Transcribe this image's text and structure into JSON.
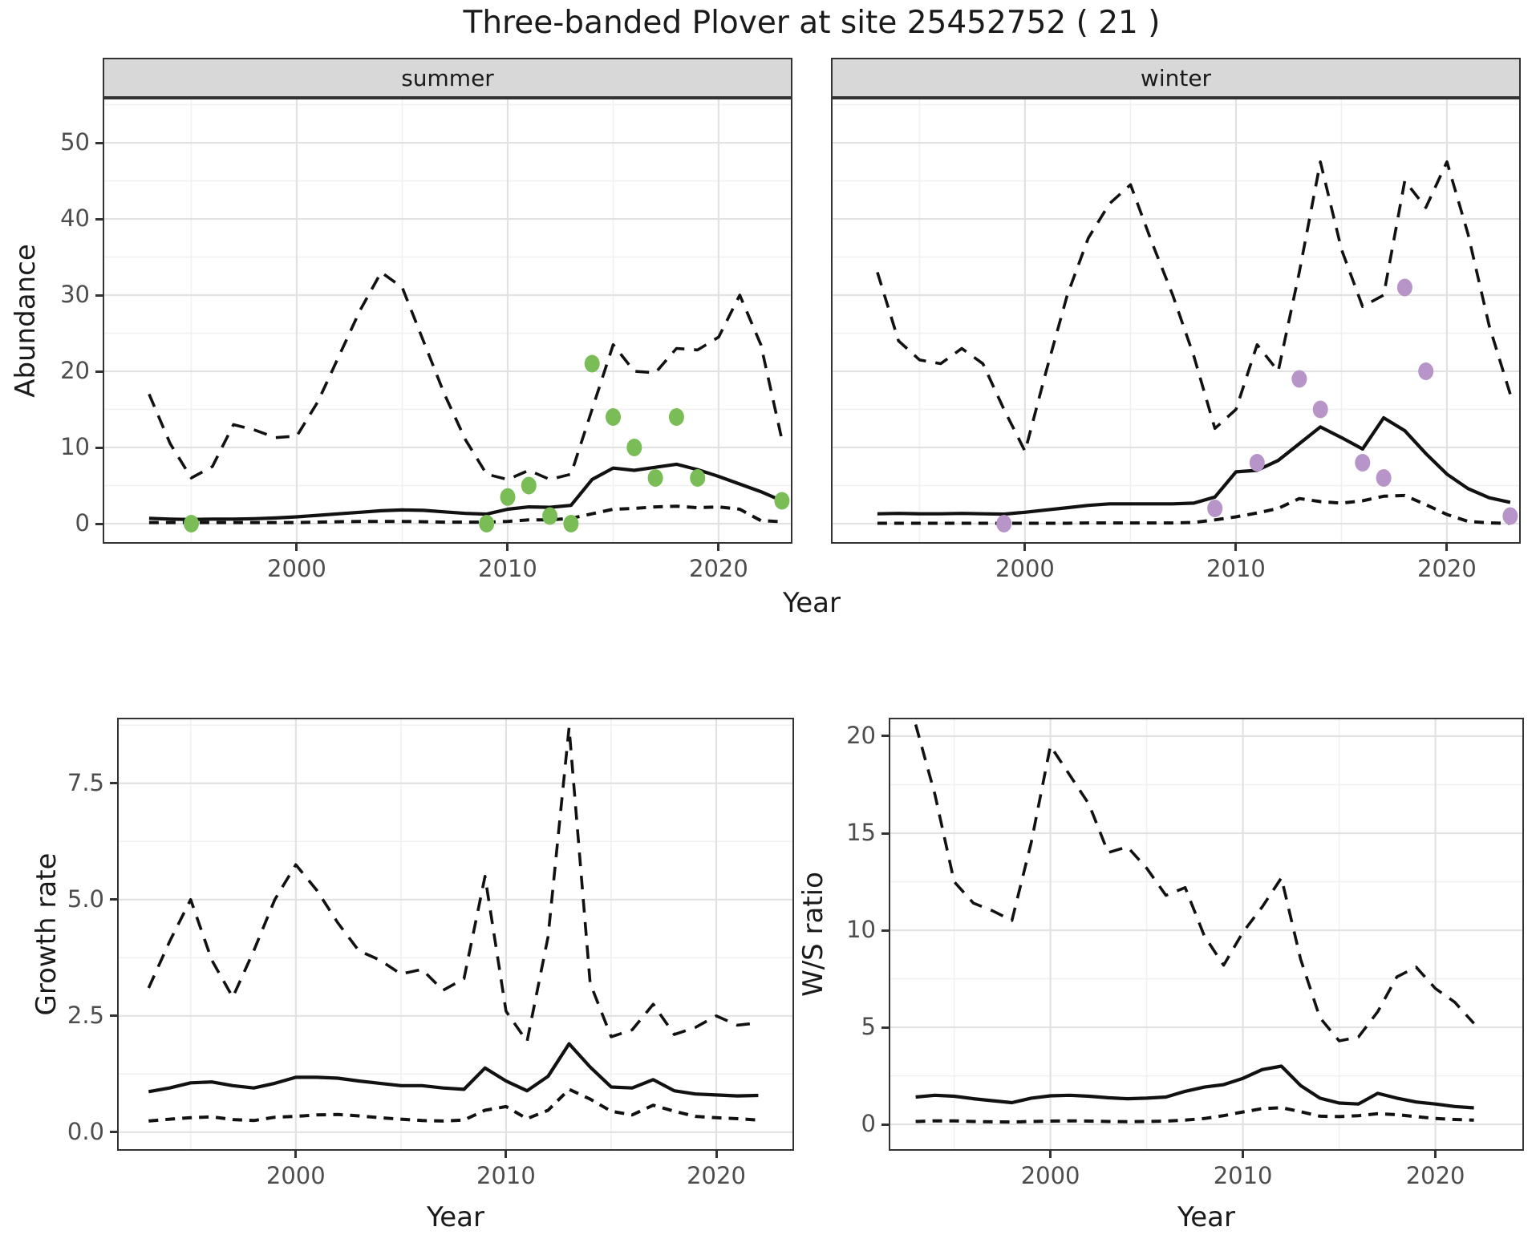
{
  "title": "Three-banded Plover at site 25452752 ( 21 )",
  "axes": {
    "abundance_label": "Abundance",
    "growth_label": "Growth rate",
    "ws_label": "W/S ratio",
    "year_label": "Year"
  },
  "colors": {
    "summer_points": "#7abd56",
    "winter_points": "#b795c8",
    "line": "#111111",
    "grid_major": "#e2e2e2",
    "grid_minor": "#f0f0f0",
    "panel_border": "#333333",
    "strip_fill": "#d8d8d8",
    "axis_text": "#4d4d4d"
  },
  "chart_data": [
    {
      "type": "line",
      "id": "abundance-summer",
      "facet": "summer",
      "ylabel": "Abundance",
      "xlabel": "Year",
      "x": [
        1993,
        1994,
        1995,
        1996,
        1997,
        1998,
        1999,
        2000,
        2001,
        2002,
        2003,
        2004,
        2005,
        2006,
        2007,
        2008,
        2009,
        2010,
        2011,
        2012,
        2013,
        2014,
        2015,
        2016,
        2017,
        2018,
        2019,
        2020,
        2021,
        2022,
        2023
      ],
      "series": [
        {
          "name": "upper-95ci",
          "style": "dashed",
          "values": [
            17,
            10.5,
            6,
            7.5,
            13,
            12.3,
            11.3,
            11.5,
            16,
            22,
            28,
            33,
            31,
            24,
            17,
            11,
            6.5,
            5.8,
            7,
            5.8,
            6.5,
            15,
            23.5,
            20,
            19.8,
            23,
            22.8,
            24.5,
            30,
            23.5,
            11
          ]
        },
        {
          "name": "median",
          "style": "solid",
          "values": [
            0.7,
            0.6,
            0.55,
            0.6,
            0.6,
            0.65,
            0.75,
            0.9,
            1.1,
            1.3,
            1.5,
            1.7,
            1.8,
            1.75,
            1.55,
            1.35,
            1.25,
            1.9,
            2.2,
            2.15,
            2.4,
            5.8,
            7.3,
            7.0,
            7.4,
            7.8,
            7.1,
            6.2,
            5.2,
            4.2,
            3.0
          ]
        },
        {
          "name": "lower-95ci",
          "style": "dashed-short",
          "values": [
            0.15,
            0.15,
            0.15,
            0.15,
            0.15,
            0.15,
            0.15,
            0.15,
            0.2,
            0.25,
            0.3,
            0.3,
            0.3,
            0.25,
            0.2,
            0.2,
            0.2,
            0.3,
            0.5,
            0.5,
            0.7,
            1.3,
            1.9,
            2.0,
            2.2,
            2.3,
            2.1,
            2.2,
            1.9,
            0.4,
            0.25
          ]
        }
      ],
      "points": {
        "name": "observed",
        "color": "summer_points",
        "data": [
          [
            1995,
            0
          ],
          [
            2009,
            0
          ],
          [
            2010,
            3.5
          ],
          [
            2011,
            5
          ],
          [
            2012,
            1
          ],
          [
            2013,
            0
          ],
          [
            2014,
            21
          ],
          [
            2015,
            14
          ],
          [
            2016,
            10
          ],
          [
            2017,
            6
          ],
          [
            2018,
            14
          ],
          [
            2019,
            6
          ],
          [
            2023,
            3
          ]
        ]
      },
      "xticks": [
        2000,
        2010,
        2020
      ],
      "xtick_labels": [
        "2000",
        "2010",
        "2020"
      ],
      "yticks": [
        0,
        10,
        20,
        30,
        40,
        50
      ],
      "ytick_labels": [
        "0",
        "10",
        "20",
        "30",
        "40",
        "50"
      ],
      "ylim": [
        0,
        50
      ],
      "show_ylabels": true,
      "grid": true
    },
    {
      "type": "line",
      "id": "abundance-winter",
      "facet": "winter",
      "ylabel": "Abundance",
      "xlabel": "Year",
      "x": [
        1993,
        1994,
        1995,
        1996,
        1997,
        1998,
        1999,
        2000,
        2001,
        2002,
        2003,
        2004,
        2005,
        2006,
        2007,
        2008,
        2009,
        2010,
        2011,
        2012,
        2013,
        2014,
        2015,
        2016,
        2017,
        2018,
        2019,
        2020,
        2021,
        2022,
        2023
      ],
      "series": [
        {
          "name": "upper-95ci",
          "style": "dashed",
          "values": [
            33,
            24,
            21.5,
            21,
            23,
            21,
            15,
            9.5,
            20,
            30,
            37.5,
            42,
            44.5,
            37,
            30,
            22,
            12.5,
            15,
            23.5,
            20,
            33,
            47.5,
            36,
            28.5,
            30,
            45,
            41.5,
            47.5,
            38,
            26,
            17
          ]
        },
        {
          "name": "median",
          "style": "solid",
          "values": [
            1.3,
            1.35,
            1.3,
            1.3,
            1.35,
            1.3,
            1.25,
            1.5,
            1.8,
            2.1,
            2.4,
            2.6,
            2.6,
            2.6,
            2.6,
            2.7,
            3.5,
            6.8,
            7.0,
            8.3,
            10.5,
            12.7,
            11.3,
            9.8,
            13.9,
            12.2,
            9.2,
            6.5,
            4.6,
            3.4,
            2.8
          ]
        },
        {
          "name": "lower-95ci",
          "style": "dashed-short",
          "values": [
            0.05,
            0.05,
            0.05,
            0.05,
            0.05,
            0.05,
            0.05,
            0.05,
            0.05,
            0.05,
            0.1,
            0.1,
            0.1,
            0.1,
            0.1,
            0.15,
            0.5,
            0.9,
            1.4,
            2.0,
            3.3,
            2.9,
            2.7,
            3.0,
            3.6,
            3.7,
            2.5,
            1.2,
            0.3,
            0.1,
            0.05
          ]
        }
      ],
      "points": {
        "name": "observed",
        "color": "winter_points",
        "data": [
          [
            1999,
            0
          ],
          [
            2009,
            2
          ],
          [
            2011,
            8
          ],
          [
            2013,
            19
          ],
          [
            2014,
            15
          ],
          [
            2016,
            8
          ],
          [
            2017,
            6
          ],
          [
            2018,
            31
          ],
          [
            2019,
            20
          ],
          [
            2023,
            1
          ]
        ]
      },
      "xticks": [
        2000,
        2010,
        2020
      ],
      "xtick_labels": [
        "2000",
        "2010",
        "2020"
      ],
      "yticks": [
        0,
        10,
        20,
        30,
        40,
        50
      ],
      "ytick_labels": [
        "0",
        "10",
        "20",
        "30",
        "40",
        "50"
      ],
      "ylim": [
        0,
        50
      ],
      "show_ylabels": false,
      "grid": true
    },
    {
      "type": "line",
      "id": "growth-rate",
      "facet": null,
      "ylabel": "Growth rate",
      "xlabel": "Year",
      "x": [
        1993,
        1994,
        1995,
        1996,
        1997,
        1998,
        1999,
        2000,
        2001,
        2002,
        2003,
        2004,
        2005,
        2006,
        2007,
        2008,
        2009,
        2010,
        2011,
        2012,
        2013,
        2014,
        2015,
        2016,
        2017,
        2018,
        2019,
        2020,
        2021,
        2022
      ],
      "series": [
        {
          "name": "upper-95ci",
          "style": "dashed",
          "values": [
            3.1,
            4.1,
            5.0,
            3.7,
            2.9,
            3.9,
            5.0,
            5.75,
            5.2,
            4.5,
            3.9,
            3.7,
            3.4,
            3.5,
            3.05,
            3.3,
            5.5,
            2.6,
            1.95,
            4.2,
            8.7,
            3.2,
            2.05,
            2.2,
            2.75,
            2.1,
            2.25,
            2.5,
            2.3,
            2.35
          ]
        },
        {
          "name": "median",
          "style": "solid",
          "values": [
            0.87,
            0.95,
            1.06,
            1.08,
            1.0,
            0.95,
            1.05,
            1.18,
            1.18,
            1.16,
            1.1,
            1.05,
            1.0,
            1.0,
            0.95,
            0.92,
            1.38,
            1.1,
            0.89,
            1.2,
            1.9,
            1.4,
            0.97,
            0.95,
            1.13,
            0.89,
            0.82,
            0.8,
            0.78,
            0.79
          ]
        },
        {
          "name": "lower-95ci",
          "style": "dashed-short",
          "values": [
            0.24,
            0.28,
            0.31,
            0.33,
            0.27,
            0.25,
            0.32,
            0.34,
            0.37,
            0.38,
            0.35,
            0.31,
            0.28,
            0.25,
            0.24,
            0.26,
            0.47,
            0.55,
            0.29,
            0.47,
            0.92,
            0.71,
            0.45,
            0.37,
            0.58,
            0.45,
            0.34,
            0.31,
            0.29,
            0.26
          ]
        }
      ],
      "points": null,
      "xticks": [
        2000,
        2010,
        2020
      ],
      "xtick_labels": [
        "2000",
        "2010",
        "2020"
      ],
      "yticks": [
        0,
        2.5,
        5,
        7.5
      ],
      "ytick_labels": [
        "0.0",
        "2.5",
        "5.0",
        "7.5"
      ],
      "ylim": [
        0,
        8.7
      ],
      "show_ylabels": true,
      "grid": true
    },
    {
      "type": "line",
      "id": "ws-ratio",
      "facet": null,
      "ylabel": "W/S ratio",
      "xlabel": "Year",
      "x": [
        1993,
        1994,
        1995,
        1996,
        1997,
        1998,
        1999,
        2000,
        2001,
        2002,
        2003,
        2004,
        2005,
        2006,
        2007,
        2008,
        2009,
        2010,
        2011,
        2012,
        2013,
        2014,
        2015,
        2016,
        2017,
        2018,
        2019,
        2020,
        2021,
        2022
      ],
      "series": [
        {
          "name": "upper-95ci",
          "style": "dashed",
          "values": [
            20.6,
            17.0,
            12.5,
            11.4,
            11.0,
            10.5,
            14.5,
            19.5,
            18.0,
            16.5,
            14.0,
            14.3,
            13.2,
            11.8,
            12.2,
            9.7,
            8.2,
            9.9,
            11.2,
            12.7,
            8.5,
            5.5,
            4.3,
            4.5,
            5.8,
            7.6,
            8.1,
            7.0,
            6.3,
            5.2
          ]
        },
        {
          "name": "median",
          "style": "solid",
          "values": [
            1.41,
            1.5,
            1.45,
            1.32,
            1.22,
            1.12,
            1.35,
            1.47,
            1.5,
            1.45,
            1.37,
            1.32,
            1.35,
            1.41,
            1.7,
            1.92,
            2.05,
            2.37,
            2.82,
            3.0,
            2.0,
            1.35,
            1.1,
            1.05,
            1.6,
            1.35,
            1.15,
            1.05,
            0.92,
            0.85
          ]
        },
        {
          "name": "lower-95ci",
          "style": "dashed-short",
          "values": [
            0.15,
            0.18,
            0.18,
            0.15,
            0.13,
            0.12,
            0.15,
            0.17,
            0.18,
            0.17,
            0.15,
            0.14,
            0.15,
            0.17,
            0.22,
            0.3,
            0.45,
            0.64,
            0.81,
            0.86,
            0.65,
            0.42,
            0.4,
            0.45,
            0.55,
            0.5,
            0.4,
            0.3,
            0.25,
            0.22
          ]
        }
      ],
      "points": null,
      "xticks": [
        2000,
        2010,
        2020
      ],
      "xtick_labels": [
        "2000",
        "2010",
        "2020"
      ],
      "yticks": [
        0,
        5,
        10,
        15,
        20
      ],
      "ytick_labels": [
        "0",
        "5",
        "10",
        "15",
        "20"
      ],
      "ylim": [
        0,
        20.6
      ],
      "show_ylabels": true,
      "grid": true
    }
  ]
}
